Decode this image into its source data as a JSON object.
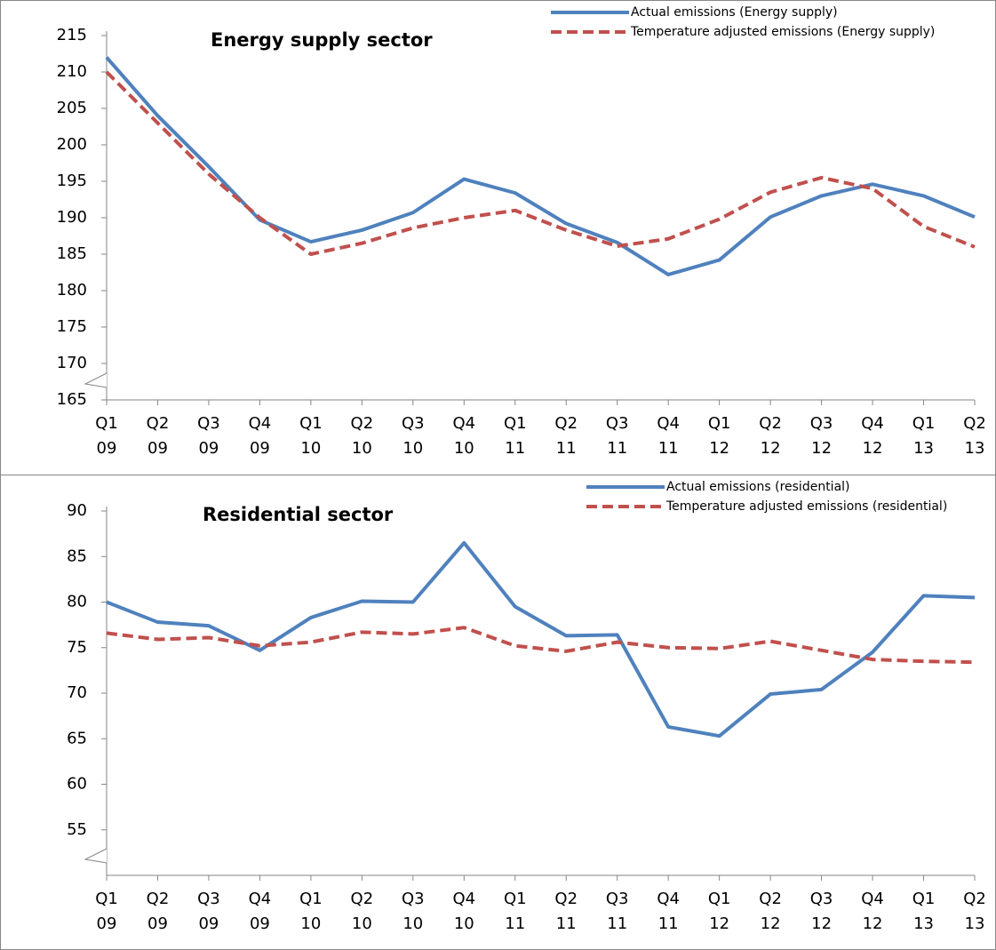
{
  "chart_data": [
    {
      "type": "line",
      "title": "Energy supply sector",
      "categories": [
        [
          "Q1",
          "09"
        ],
        [
          "Q2",
          "09"
        ],
        [
          "Q3",
          "09"
        ],
        [
          "Q4",
          "09"
        ],
        [
          "Q1",
          "10"
        ],
        [
          "Q2",
          "10"
        ],
        [
          "Q3",
          "10"
        ],
        [
          "Q4",
          "10"
        ],
        [
          "Q1",
          "11"
        ],
        [
          "Q2",
          "11"
        ],
        [
          "Q3",
          "11"
        ],
        [
          "Q4",
          "11"
        ],
        [
          "Q1",
          "12"
        ],
        [
          "Q2",
          "12"
        ],
        [
          "Q3",
          "12"
        ],
        [
          "Q4",
          "12"
        ],
        [
          "Q1",
          "13"
        ],
        [
          "Q2",
          "13"
        ]
      ],
      "series": [
        {
          "name": "Actual emissions (Energy supply)",
          "color": "#4f81bd",
          "dashed": false,
          "values": [
            212,
            204,
            197,
            189.7,
            186.7,
            188.3,
            190.7,
            195.3,
            193.4,
            189.2,
            186.6,
            182.2,
            184.2,
            190.1,
            193,
            194.6,
            193,
            190.1
          ]
        },
        {
          "name": "Temperature adjusted emissions (Energy supply)",
          "color": "#c0504d",
          "dashed": true,
          "values": [
            210,
            203,
            196,
            190,
            185,
            186.5,
            188.6,
            190,
            191,
            188.3,
            186.1,
            187.1,
            189.8,
            193.5,
            195.5,
            194,
            188.8,
            186
          ]
        }
      ],
      "ylim": [
        165,
        215
      ],
      "yticks": [
        165,
        170,
        175,
        180,
        185,
        190,
        195,
        200,
        205,
        210,
        215
      ],
      "axis_break": true,
      "legend": "top-right"
    },
    {
      "type": "line",
      "title": "Residential sector",
      "categories": [
        [
          "Q1",
          "09"
        ],
        [
          "Q2",
          "09"
        ],
        [
          "Q3",
          "09"
        ],
        [
          "Q4",
          "09"
        ],
        [
          "Q1",
          "10"
        ],
        [
          "Q2",
          "10"
        ],
        [
          "Q3",
          "10"
        ],
        [
          "Q4",
          "10"
        ],
        [
          "Q1",
          "11"
        ],
        [
          "Q2",
          "11"
        ],
        [
          "Q3",
          "11"
        ],
        [
          "Q4",
          "11"
        ],
        [
          "Q1",
          "12"
        ],
        [
          "Q2",
          "12"
        ],
        [
          "Q3",
          "12"
        ],
        [
          "Q4",
          "12"
        ],
        [
          "Q1",
          "13"
        ],
        [
          "Q2",
          "13"
        ]
      ],
      "series": [
        {
          "name": "Actual emissions (residential)",
          "color": "#4f81bd",
          "dashed": false,
          "values": [
            80,
            77.8,
            77.4,
            74.7,
            78.3,
            80.1,
            80,
            86.5,
            79.5,
            76.3,
            76.4,
            66.3,
            65.3,
            69.9,
            70.4,
            74.5,
            80.7,
            80.5
          ]
        },
        {
          "name": "Temperature adjusted emissions (residential)",
          "color": "#c0504d",
          "dashed": true,
          "values": [
            76.6,
            75.9,
            76.1,
            75.2,
            75.6,
            76.7,
            76.5,
            77.2,
            75.2,
            74.6,
            75.6,
            75,
            74.9,
            75.7,
            74.7,
            73.7,
            73.5,
            73.4
          ]
        }
      ],
      "ylim": [
        50,
        90
      ],
      "yticks": [
        55,
        60,
        65,
        70,
        75,
        80,
        85,
        90
      ],
      "axis_break": true,
      "legend": "top-right"
    }
  ]
}
